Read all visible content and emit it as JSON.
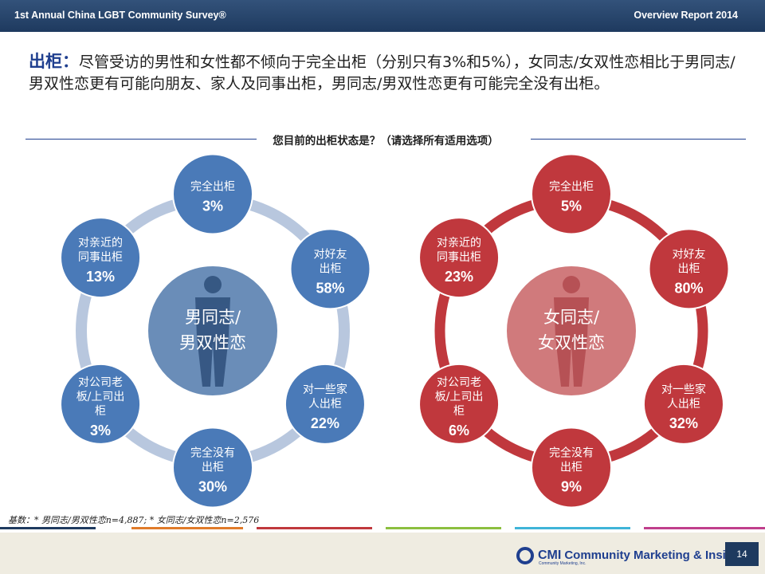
{
  "header": {
    "left_title": "1st Annual China LGBT Community Survey®",
    "right_title": "Overview Report 2014"
  },
  "headline": {
    "keyword": "出柜：",
    "text": "尽管受访的男性和女性都不倾向于完全出柜（分别只有3%和5%），女同志/女双性恋相比于男同志/男双性恋更有可能向朋友、家人及同事出柜，男同志/男双性恋更有可能完全没有出柜。"
  },
  "question": "您目前的出柜状态是？（请选择所有适用选项）",
  "base_note": "基数：* 男同志/男双性恋n=4,887; * 女同志/女双性恋n=2,576",
  "page_number": "14",
  "logo": {
    "cmi": "CMI",
    "name": "Community Marketing & Insights",
    "sub": "Community Marketing, Inc."
  },
  "colors": {
    "male_node": "#4a7ab8",
    "male_ring": "#b8c7de",
    "male_center": "#6a8db8",
    "female_node": "#c0383d",
    "female_ring": "#c0383d",
    "female_center": "#d07a7c",
    "header": "#1e3a5f",
    "accent": "#1f3f8f"
  },
  "chart_data": [
    {
      "type": "table",
      "group": "男同志/男双性恋",
      "center_label_lines": [
        "男同志/",
        "男双性恋"
      ],
      "categories": [
        {
          "label_lines": [
            "完全出柜"
          ],
          "value": "3%"
        },
        {
          "label_lines": [
            "对好友",
            "出柜"
          ],
          "value": "58%"
        },
        {
          "label_lines": [
            "对一些家",
            "人出柜"
          ],
          "value": "22%"
        },
        {
          "label_lines": [
            "完全没有",
            "出柜"
          ],
          "value": "30%"
        },
        {
          "label_lines": [
            "对公司老",
            "板/上司出",
            "柜"
          ],
          "value": "3%"
        },
        {
          "label_lines": [
            "对亲近的",
            "同事出柜"
          ],
          "value": "13%"
        }
      ],
      "values": [
        3,
        58,
        22,
        30,
        3,
        13
      ]
    },
    {
      "type": "table",
      "group": "女同志/女双性恋",
      "center_label_lines": [
        "女同志/",
        "女双性恋"
      ],
      "categories": [
        {
          "label_lines": [
            "完全出柜"
          ],
          "value": "5%"
        },
        {
          "label_lines": [
            "对好友",
            "出柜"
          ],
          "value": "80%"
        },
        {
          "label_lines": [
            "对一些家",
            "人出柜"
          ],
          "value": "32%"
        },
        {
          "label_lines": [
            "完全没有",
            "出柜"
          ],
          "value": "9%"
        },
        {
          "label_lines": [
            "对公司老",
            "板/上司出",
            "柜"
          ],
          "value": "6%"
        },
        {
          "label_lines": [
            "对亲近的",
            "同事出柜"
          ],
          "value": "23%"
        }
      ],
      "values": [
        5,
        80,
        32,
        9,
        6,
        23
      ]
    }
  ]
}
